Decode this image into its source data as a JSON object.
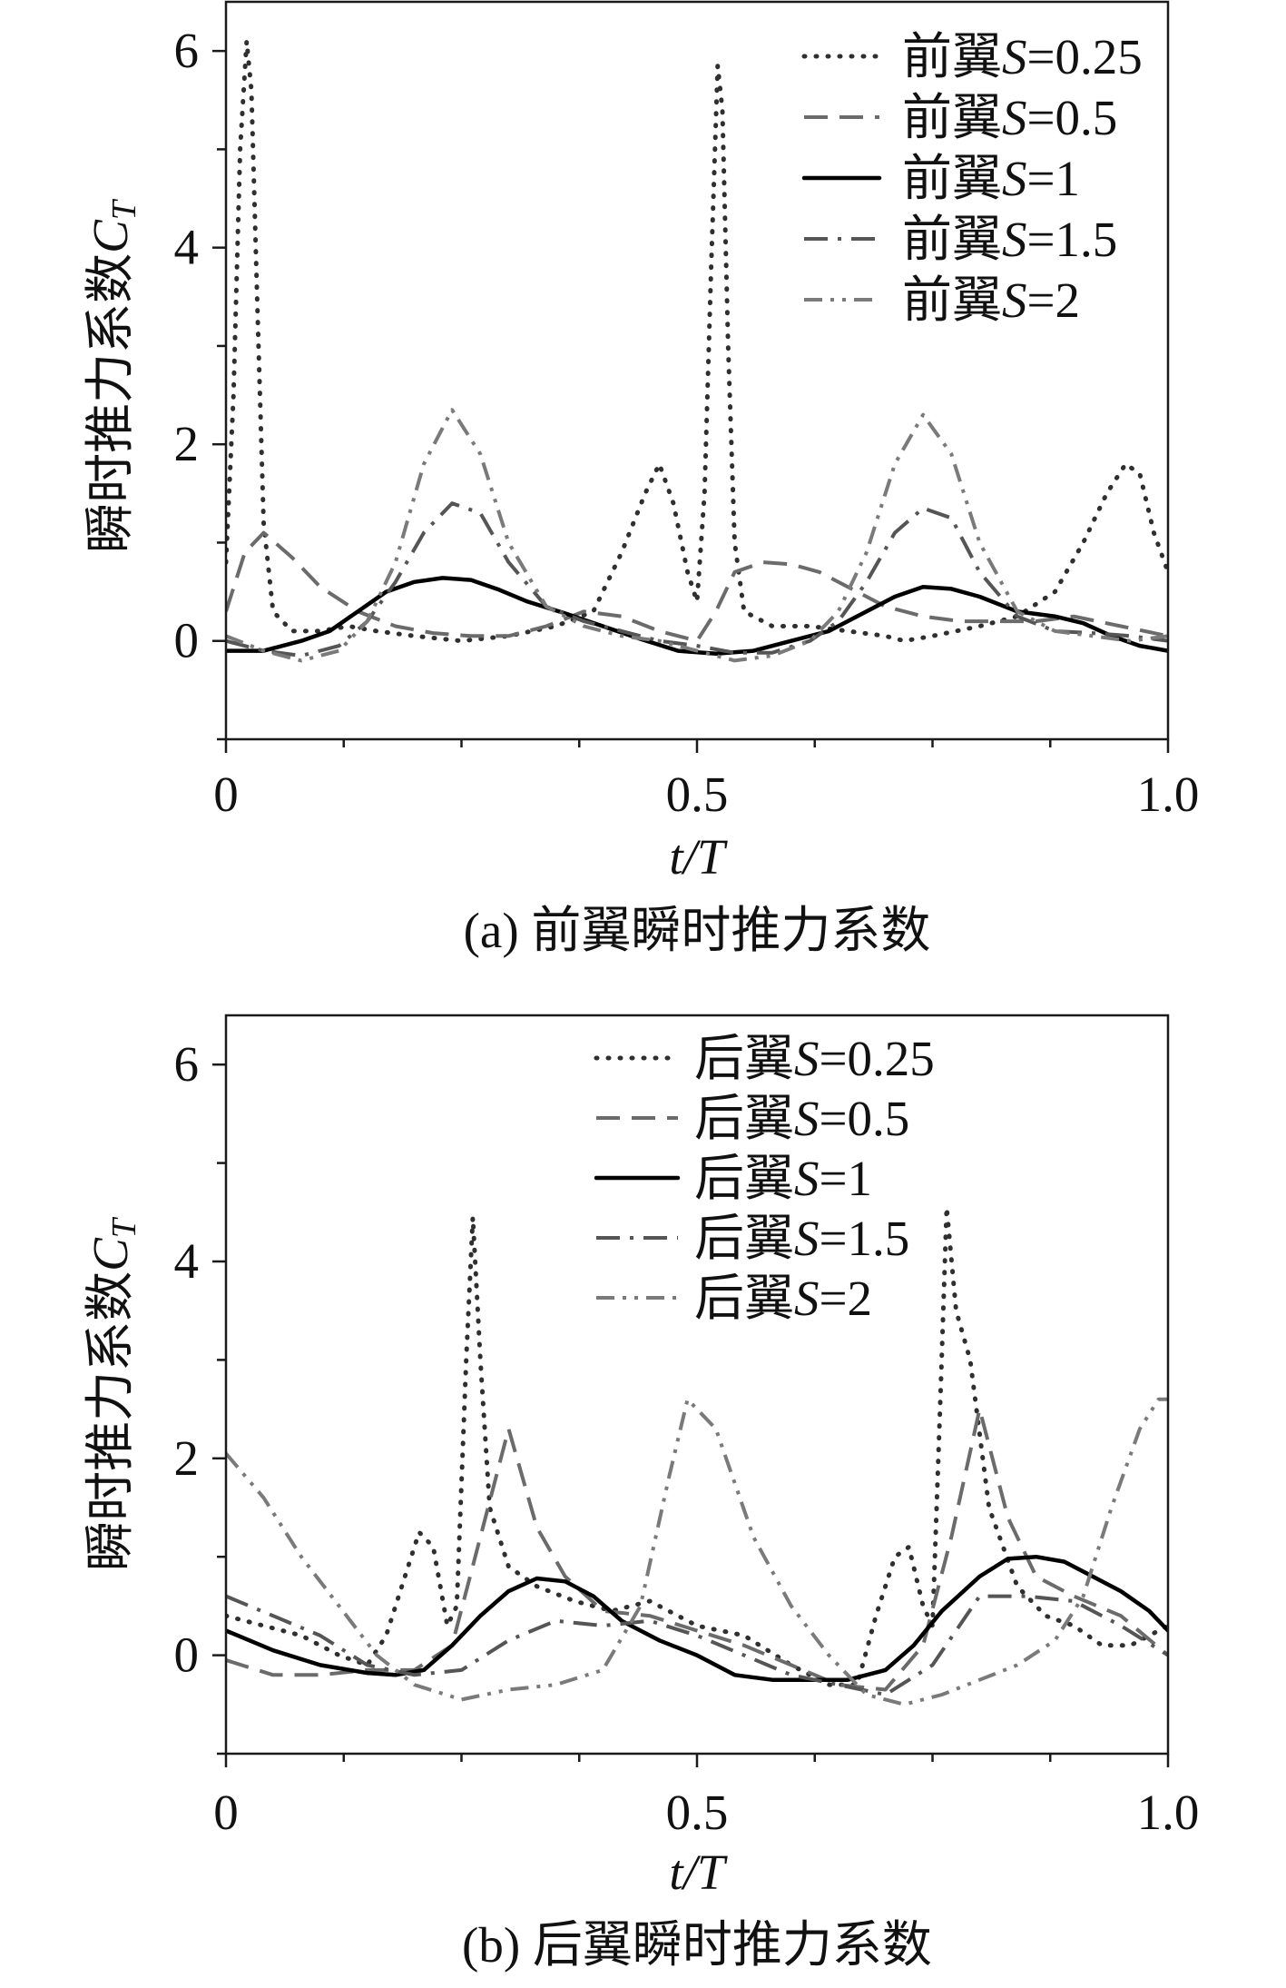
{
  "chart_data": [
    {
      "type": "line",
      "caption": "(a) 前翼瞬时推力系数",
      "xlabel": "t/T",
      "ylabel": {
        "text": "瞬时推力系数",
        "var": "C",
        "sub": "T"
      },
      "xlim": [
        0,
        1.0
      ],
      "ylim": [
        -1,
        6.5
      ],
      "xticks": [
        {
          "value": 0,
          "label": "0"
        },
        {
          "value": 0.5,
          "label": "0.5"
        },
        {
          "value": 1.0,
          "label": "1.0"
        }
      ],
      "xminor_step": 0.125,
      "yticks": [
        {
          "value": 0,
          "label": "0"
        },
        {
          "value": 2,
          "label": "2"
        },
        {
          "value": 4,
          "label": "4"
        },
        {
          "value": 6,
          "label": "6"
        }
      ],
      "yminor_step": 1,
      "grid": false,
      "legend_position": "top-right",
      "series": [
        {
          "label_prefix": "前翼",
          "label_var": "S",
          "label_value": "=0.25",
          "line_style": "dotted",
          "color": "#2f2f2f",
          "x": [
            0,
            0.008,
            0.015,
            0.022,
            0.027,
            0.033,
            0.04,
            0.05,
            0.07,
            0.1,
            0.13,
            0.16,
            0.2,
            0.25,
            0.3,
            0.35,
            0.39,
            0.42,
            0.445,
            0.46,
            0.475,
            0.49,
            0.5,
            0.508,
            0.515,
            0.522,
            0.527,
            0.533,
            0.54,
            0.55,
            0.58,
            0.62,
            0.66,
            0.7,
            0.72,
            0.75,
            0.8,
            0.84,
            0.88,
            0.91,
            0.935,
            0.955,
            0.97,
            0.985,
            1.0
          ],
          "y": [
            0.8,
            2.5,
            5.0,
            6.1,
            5.6,
            3.5,
            1.2,
            0.3,
            0.1,
            0.1,
            0.15,
            0.1,
            0.05,
            0.0,
            0.05,
            0.15,
            0.3,
            0.9,
            1.5,
            1.8,
            1.4,
            0.7,
            0.4,
            1.5,
            3.8,
            5.85,
            5.4,
            3.0,
            1.0,
            0.3,
            0.15,
            0.15,
            0.1,
            0.05,
            0.0,
            0.05,
            0.15,
            0.25,
            0.5,
            1.0,
            1.5,
            1.8,
            1.7,
            1.1,
            0.7
          ]
        },
        {
          "label_prefix": "前翼",
          "label_var": "S",
          "label_value": "=0.5",
          "line_style": "dashed",
          "color": "#6b6b6b",
          "x": [
            0,
            0.02,
            0.04,
            0.07,
            0.1,
            0.14,
            0.18,
            0.22,
            0.26,
            0.3,
            0.34,
            0.38,
            0.42,
            0.46,
            0.5,
            0.52,
            0.54,
            0.57,
            0.6,
            0.63,
            0.66,
            0.7,
            0.74,
            0.78,
            0.82,
            0.86,
            0.9,
            0.95,
            1.0
          ],
          "y": [
            0.3,
            0.9,
            1.1,
            0.85,
            0.55,
            0.3,
            0.15,
            0.08,
            0.05,
            0.05,
            0.15,
            0.3,
            0.25,
            0.1,
            0.0,
            0.3,
            0.7,
            0.8,
            0.78,
            0.7,
            0.55,
            0.35,
            0.25,
            0.2,
            0.2,
            0.2,
            0.25,
            0.15,
            0.05
          ]
        },
        {
          "label_prefix": "前翼",
          "label_var": "S",
          "label_value": "=1",
          "line_style": "solid",
          "color": "#000000",
          "x": [
            0,
            0.04,
            0.08,
            0.11,
            0.14,
            0.17,
            0.2,
            0.23,
            0.26,
            0.29,
            0.32,
            0.36,
            0.4,
            0.44,
            0.48,
            0.52,
            0.56,
            0.6,
            0.64,
            0.68,
            0.71,
            0.74,
            0.77,
            0.8,
            0.84,
            0.88,
            0.91,
            0.94,
            0.97,
            1.0
          ],
          "y": [
            -0.1,
            -0.1,
            0.0,
            0.1,
            0.3,
            0.5,
            0.6,
            0.64,
            0.62,
            0.52,
            0.4,
            0.28,
            0.15,
            0.02,
            -0.1,
            -0.13,
            -0.1,
            0.0,
            0.1,
            0.3,
            0.45,
            0.55,
            0.53,
            0.45,
            0.3,
            0.25,
            0.18,
            0.05,
            -0.05,
            -0.1
          ]
        },
        {
          "label_prefix": "前翼",
          "label_var": "S",
          "label_value": "=1.5",
          "line_style": "dashdot",
          "color": "#555555",
          "x": [
            0,
            0.04,
            0.08,
            0.12,
            0.15,
            0.18,
            0.21,
            0.24,
            0.27,
            0.3,
            0.34,
            0.38,
            0.42,
            0.46,
            0.5,
            0.54,
            0.58,
            0.62,
            0.65,
            0.68,
            0.71,
            0.74,
            0.77,
            0.8,
            0.84,
            0.88,
            0.92,
            0.96,
            1.0
          ],
          "y": [
            0.0,
            -0.1,
            -0.15,
            -0.05,
            0.2,
            0.6,
            1.1,
            1.4,
            1.3,
            0.8,
            0.35,
            0.2,
            0.1,
            0.0,
            -0.05,
            -0.12,
            -0.12,
            0.0,
            0.2,
            0.6,
            1.1,
            1.35,
            1.25,
            0.7,
            0.25,
            0.1,
            0.08,
            0.05,
            0.0
          ]
        },
        {
          "label_prefix": "前翼",
          "label_var": "S",
          "label_value": "=2",
          "line_style": "dashdotdot",
          "color": "#7a7a7a",
          "x": [
            0,
            0.04,
            0.08,
            0.12,
            0.15,
            0.18,
            0.21,
            0.24,
            0.27,
            0.3,
            0.34,
            0.38,
            0.42,
            0.46,
            0.5,
            0.54,
            0.58,
            0.62,
            0.65,
            0.68,
            0.71,
            0.74,
            0.77,
            0.8,
            0.84,
            0.88,
            0.92,
            0.96,
            1.0
          ],
          "y": [
            0.05,
            -0.1,
            -0.2,
            -0.1,
            0.2,
            0.8,
            1.8,
            2.35,
            1.9,
            1.0,
            0.35,
            0.15,
            0.05,
            0.0,
            -0.1,
            -0.2,
            -0.15,
            0.0,
            0.3,
            0.9,
            1.8,
            2.3,
            1.9,
            1.0,
            0.3,
            0.1,
            0.05,
            0.0,
            0.05
          ]
        }
      ]
    },
    {
      "type": "line",
      "caption": "(b) 后翼瞬时推力系数",
      "xlabel": "t/T",
      "ylabel": {
        "text": "瞬时推力系数",
        "var": "C",
        "sub": "T"
      },
      "xlim": [
        0,
        1.0
      ],
      "ylim": [
        -1,
        6.5
      ],
      "xticks": [
        {
          "value": 0,
          "label": "0"
        },
        {
          "value": 0.5,
          "label": "0.5"
        },
        {
          "value": 1.0,
          "label": "1.0"
        }
      ],
      "xminor_step": 0.125,
      "yticks": [
        {
          "value": 0,
          "label": "0"
        },
        {
          "value": 2,
          "label": "2"
        },
        {
          "value": 4,
          "label": "4"
        },
        {
          "value": 6,
          "label": "6"
        }
      ],
      "yminor_step": 1,
      "grid": false,
      "legend_position": "top-center",
      "series": [
        {
          "label_prefix": "后翼",
          "label_var": "S",
          "label_value": "=0.25",
          "line_style": "dotted",
          "color": "#2f2f2f",
          "x": [
            0,
            0.04,
            0.08,
            0.12,
            0.15,
            0.17,
            0.19,
            0.205,
            0.22,
            0.235,
            0.245,
            0.255,
            0.262,
            0.27,
            0.28,
            0.3,
            0.33,
            0.37,
            0.41,
            0.45,
            0.5,
            0.55,
            0.6,
            0.64,
            0.67,
            0.69,
            0.71,
            0.725,
            0.74,
            0.75,
            0.758,
            0.765,
            0.775,
            0.79,
            0.81,
            0.84,
            0.87,
            0.9,
            0.93,
            0.96,
            1.0
          ],
          "y": [
            0.4,
            0.3,
            0.2,
            0.0,
            -0.1,
            0.2,
            0.8,
            1.25,
            1.1,
            0.3,
            0.5,
            3.0,
            4.45,
            3.0,
            1.5,
            0.9,
            0.7,
            0.55,
            0.45,
            0.55,
            0.3,
            0.2,
            -0.1,
            -0.3,
            -0.3,
            0.4,
            1.0,
            1.1,
            0.5,
            0.3,
            2.5,
            4.55,
            3.5,
            3.0,
            1.5,
            0.7,
            0.4,
            0.3,
            0.1,
            0.1,
            0.3
          ]
        },
        {
          "label_prefix": "后翼",
          "label_var": "S",
          "label_value": "=0.5",
          "line_style": "dashed",
          "color": "#6b6b6b",
          "x": [
            0,
            0.05,
            0.1,
            0.15,
            0.2,
            0.24,
            0.27,
            0.3,
            0.33,
            0.36,
            0.4,
            0.45,
            0.5,
            0.55,
            0.6,
            0.65,
            0.7,
            0.74,
            0.77,
            0.8,
            0.83,
            0.86,
            0.9,
            0.95,
            1.0
          ],
          "y": [
            -0.05,
            -0.2,
            -0.2,
            -0.15,
            -0.15,
            0.1,
            1.2,
            2.3,
            1.3,
            0.8,
            0.45,
            0.4,
            0.25,
            0.1,
            -0.1,
            -0.3,
            -0.35,
            0.1,
            1.2,
            2.5,
            1.4,
            0.8,
            0.6,
            0.4,
            0.0
          ]
        },
        {
          "label_prefix": "后翼",
          "label_var": "S",
          "label_value": "=1",
          "line_style": "solid",
          "color": "#000000",
          "x": [
            0,
            0.05,
            0.1,
            0.15,
            0.18,
            0.21,
            0.24,
            0.27,
            0.3,
            0.33,
            0.36,
            0.39,
            0.42,
            0.46,
            0.5,
            0.54,
            0.58,
            0.62,
            0.66,
            0.7,
            0.73,
            0.76,
            0.8,
            0.83,
            0.86,
            0.89,
            0.92,
            0.95,
            0.98,
            1.0
          ],
          "y": [
            0.25,
            0.05,
            -0.1,
            -0.18,
            -0.2,
            -0.15,
            0.1,
            0.4,
            0.65,
            0.78,
            0.75,
            0.6,
            0.35,
            0.15,
            0.0,
            -0.2,
            -0.25,
            -0.25,
            -0.25,
            -0.15,
            0.1,
            0.45,
            0.8,
            0.98,
            1.0,
            0.95,
            0.8,
            0.65,
            0.45,
            0.25
          ]
        },
        {
          "label_prefix": "后翼",
          "label_var": "S",
          "label_value": "=1.5",
          "line_style": "dashdot",
          "color": "#555555",
          "x": [
            0,
            0.05,
            0.1,
            0.15,
            0.2,
            0.25,
            0.3,
            0.35,
            0.4,
            0.45,
            0.5,
            0.55,
            0.6,
            0.65,
            0.7,
            0.75,
            0.8,
            0.85,
            0.9,
            0.95,
            1.0
          ],
          "y": [
            0.6,
            0.4,
            0.2,
            -0.1,
            -0.2,
            -0.15,
            0.15,
            0.35,
            0.3,
            0.35,
            0.2,
            0.0,
            -0.2,
            -0.3,
            -0.4,
            -0.1,
            0.6,
            0.6,
            0.55,
            0.3,
            0.0
          ]
        },
        {
          "label_prefix": "后翼",
          "label_var": "S",
          "label_value": "=2",
          "line_style": "dashdotdot",
          "color": "#7a7a7a",
          "x": [
            0,
            0.04,
            0.08,
            0.12,
            0.16,
            0.2,
            0.25,
            0.3,
            0.35,
            0.4,
            0.44,
            0.47,
            0.49,
            0.52,
            0.56,
            0.6,
            0.64,
            0.68,
            0.72,
            0.76,
            0.8,
            0.84,
            0.88,
            0.91,
            0.94,
            0.97,
            0.99,
            1.0
          ],
          "y": [
            2.05,
            1.6,
            1.0,
            0.5,
            0.0,
            -0.3,
            -0.45,
            -0.35,
            -0.3,
            -0.15,
            0.5,
            1.8,
            2.6,
            2.3,
            1.2,
            0.5,
            0.0,
            -0.4,
            -0.5,
            -0.4,
            -0.25,
            -0.1,
            0.15,
            0.6,
            1.5,
            2.3,
            2.6,
            2.6
          ]
        }
      ]
    }
  ]
}
